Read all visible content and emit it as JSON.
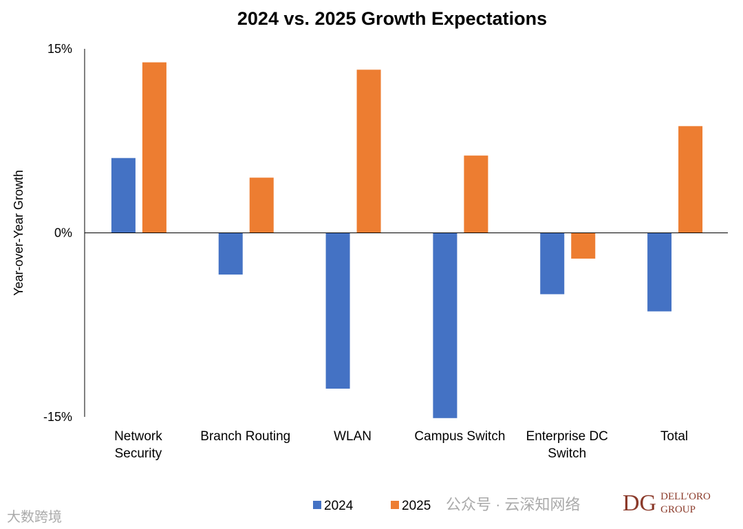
{
  "chart_data": {
    "type": "bar",
    "title": "2024 vs. 2025 Growth Expectations",
    "xlabel": "",
    "ylabel": "Year-over-Year Growth",
    "ylim": [
      -15,
      15
    ],
    "yticks": [
      "15%",
      "0%",
      "-15%"
    ],
    "ytick_values": [
      15,
      0,
      -15
    ],
    "categories": [
      [
        "Network",
        "Security"
      ],
      [
        "Branch Routing"
      ],
      [
        "WLAN"
      ],
      [
        "Campus Switch"
      ],
      [
        "Enterprise DC",
        "Switch"
      ],
      [
        "Total"
      ]
    ],
    "series": [
      {
        "name": "2024",
        "color": "#4472C4",
        "values": [
          6.1,
          -3.4,
          -12.7,
          -15.1,
          -5.0,
          -6.4
        ]
      },
      {
        "name": "2025",
        "color": "#ED7D31",
        "values": [
          13.9,
          4.5,
          13.3,
          6.3,
          -2.1,
          8.7
        ]
      }
    ],
    "legend": "bottom",
    "grid": false
  },
  "watermark": {
    "wechat": "公众号 · 云深知网络",
    "left": "大数跨境",
    "logo": "DELL'ORO GROUP"
  }
}
